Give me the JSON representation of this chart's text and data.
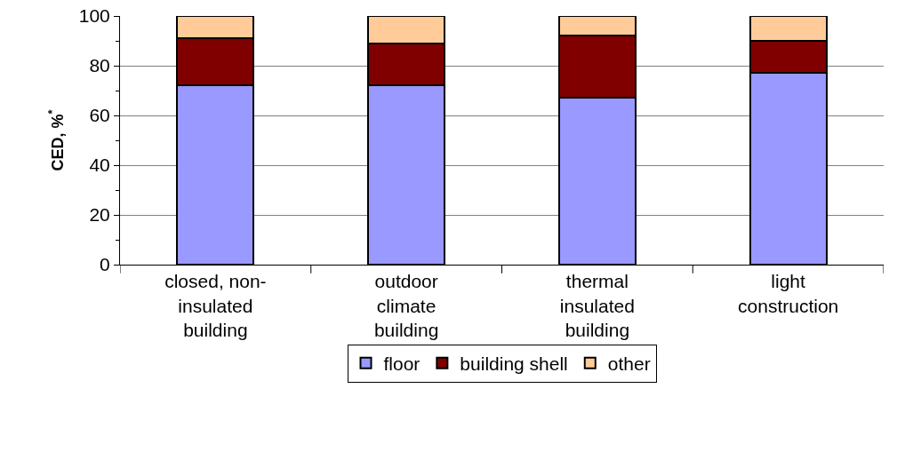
{
  "chart_data": {
    "type": "bar",
    "stacked": true,
    "ylabel": "CED, %$^{*}$",
    "categories": [
      "closed, non-insulated building",
      "outdoor climate building",
      "thermal insulated building",
      "light construction"
    ],
    "series": [
      {
        "name": "floor",
        "color": "#9999ff",
        "values": [
          72,
          72,
          67,
          77
        ]
      },
      {
        "name": "building shell",
        "color": "#800000",
        "values": [
          19,
          17,
          25,
          13
        ]
      },
      {
        "name": "other",
        "color": "#ffcc99",
        "values": [
          9,
          11,
          8,
          10
        ]
      }
    ],
    "ylim": [
      0,
      100
    ],
    "yticks": [
      0,
      {
        "value": 10,
        "label": null
      },
      20,
      {
        "value": 30,
        "label": null
      },
      40,
      {
        "value": 50,
        "label": null
      },
      60,
      {
        "value": 70,
        "label": null
      },
      80,
      {
        "value": 90,
        "label": null
      },
      100
    ],
    "grid": "y",
    "legend": "bottom"
  }
}
